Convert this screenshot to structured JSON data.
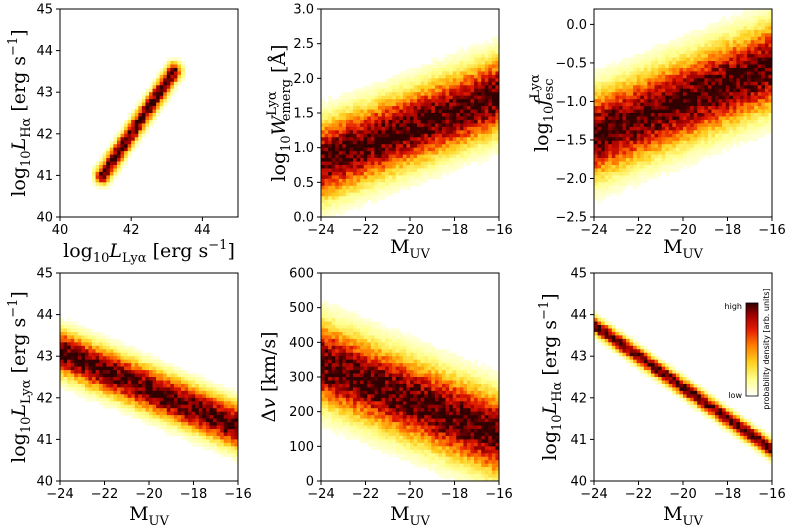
{
  "colors": {
    "cmap": [
      "#ffffff",
      "#ffff8c",
      "#ffd020",
      "#ff7a00",
      "#e21a00",
      "#a00000",
      "#300000"
    ]
  },
  "chart_data": [
    {
      "type": "heatmap",
      "id": "p1",
      "shape": "ellipse",
      "x_label": {
        "main": "log",
        "sub": "10",
        "var": "L",
        "varsub": "Lyα",
        "rest": " [erg s",
        "sup": "−1",
        "end": "]"
      },
      "y_label": {
        "main": "log",
        "sub": "10",
        "var": "L",
        "varsub": "Hα",
        "rest": " [erg s",
        "sup": "−1",
        "end": "]"
      },
      "xlim": [
        40,
        45
      ],
      "ylim": [
        40,
        45
      ],
      "xticks": [
        "40",
        "42",
        "44"
      ],
      "yticks": [
        "40",
        "41",
        "42",
        "43",
        "44",
        "45"
      ],
      "trend": {
        "x_start": 41.2,
        "x_end": 43.2,
        "y_start": 41.0,
        "y_end": 43.5
      },
      "width": 0.25
    },
    {
      "type": "heatmap",
      "id": "p2",
      "shape": "band",
      "x_label": {
        "main": "M",
        "sub": "UV"
      },
      "y_label": {
        "main": "log",
        "sub": "10",
        "var": "W",
        "varsub": "emerg",
        "sup": "Lyα",
        "rest": " [Å]"
      },
      "xlim": [
        -24,
        -16
      ],
      "ylim": [
        0.0,
        3.0
      ],
      "xticks": [
        "−24",
        "−22",
        "−20",
        "−18",
        "−16"
      ],
      "yticks": [
        "0.0",
        "0.5",
        "1.0",
        "1.5",
        "2.0",
        "2.5",
        "3.0"
      ],
      "trend": {
        "x_start": -24,
        "x_end": -16,
        "y_start": 0.8,
        "y_end": 1.75
      },
      "width": 0.35
    },
    {
      "type": "heatmap",
      "id": "p3",
      "shape": "band",
      "x_label": {
        "main": "M",
        "sub": "UV"
      },
      "y_label": {
        "main": "log",
        "sub": "10",
        "var": "f",
        "varsub": "esc",
        "sup": "Lyα"
      },
      "xlim": [
        -24,
        -16
      ],
      "ylim": [
        -2.5,
        0.2
      ],
      "xticks": [
        "−24",
        "−22",
        "−20",
        "−18",
        "−16"
      ],
      "yticks": [
        "−2.5",
        "−2.0",
        "−1.5",
        "−1.0",
        "−0.5",
        "0.0"
      ],
      "trend": {
        "x_start": -24,
        "x_end": -16,
        "y_start": -1.45,
        "y_end": -0.55
      },
      "width": 0.35
    },
    {
      "type": "heatmap",
      "id": "p4",
      "shape": "band",
      "x_label": {
        "main": "M",
        "sub": "UV"
      },
      "y_label": {
        "main": "log",
        "sub": "10",
        "var": "L",
        "varsub": "Lyα",
        "rest": " [erg s",
        "sup": "−1",
        "end": "]"
      },
      "xlim": [
        -24,
        -16
      ],
      "ylim": [
        40,
        45
      ],
      "xticks": [
        "−24",
        "−22",
        "−20",
        "−18",
        "−16"
      ],
      "yticks": [
        "40",
        "41",
        "42",
        "43",
        "44",
        "45"
      ],
      "trend": {
        "x_start": -24,
        "x_end": -16,
        "y_start": 43.1,
        "y_end": 41.3
      },
      "width": 0.35
    },
    {
      "type": "heatmap",
      "id": "p5",
      "shape": "band",
      "x_label": {
        "main": "M",
        "sub": "UV"
      },
      "y_label": {
        "main": "Δ",
        "var": "v",
        "rest": " [km/s]"
      },
      "xlim": [
        -24,
        -16
      ],
      "ylim": [
        0,
        600
      ],
      "xticks": [
        "−24",
        "−22",
        "−20",
        "−18",
        "−16"
      ],
      "yticks": [
        "0",
        "100",
        "200",
        "300",
        "400",
        "500",
        "600"
      ],
      "trend": {
        "x_start": -24,
        "x_end": -16,
        "y_start": 340,
        "y_end": 130
      },
      "width": 75
    },
    {
      "type": "heatmap",
      "id": "p6",
      "shape": "band",
      "x_label": {
        "main": "M",
        "sub": "UV"
      },
      "y_label": {
        "main": "log",
        "sub": "10",
        "var": "L",
        "varsub": "Hα",
        "rest": " [erg s",
        "sup": "−1",
        "end": "]"
      },
      "xlim": [
        -24,
        -16
      ],
      "ylim": [
        40,
        45
      ],
      "xticks": [
        "−24",
        "−22",
        "−20",
        "−18",
        "−16"
      ],
      "yticks": [
        "40",
        "41",
        "42",
        "43",
        "44",
        "45"
      ],
      "trend": {
        "x_start": -24,
        "x_end": -16,
        "y_start": 43.75,
        "y_end": 40.75
      },
      "width": 0.14
    }
  ],
  "colorbar": {
    "title": "probability density [arb. units]",
    "high_label": "high",
    "low_label": "low"
  }
}
